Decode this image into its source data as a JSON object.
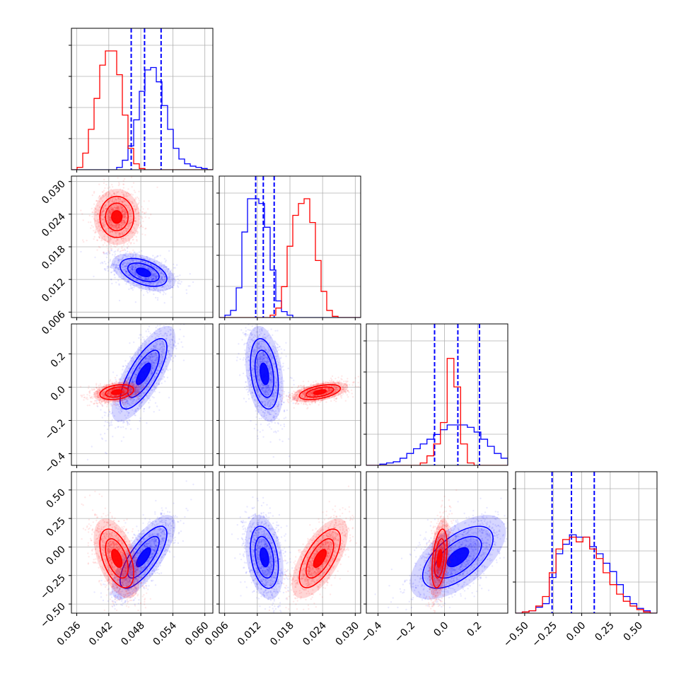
{
  "chart_data": {
    "type": "corner",
    "parameters": [
      {
        "range": [
          0.035,
          0.0615
        ],
        "ticks": [
          "0.036",
          "0.042",
          "0.048",
          "0.054",
          "0.060"
        ],
        "tick_values": [
          0.036,
          0.042,
          0.048,
          0.054,
          0.06
        ]
      },
      {
        "range": [
          0.005,
          0.031
        ],
        "ticks": [
          "0.006",
          "0.012",
          "0.018",
          "0.024",
          "0.030"
        ],
        "tick_values": [
          0.006,
          0.012,
          0.018,
          0.024,
          0.03
        ]
      },
      {
        "range": [
          -0.47,
          0.38
        ],
        "ticks": [
          "−0.4",
          "−0.2",
          "0.0",
          "0.2"
        ],
        "tick_values": [
          -0.4,
          -0.2,
          0.0,
          0.2
        ]
      },
      {
        "range": [
          -0.58,
          0.66
        ],
        "ticks": [
          "−0.50",
          "−0.25",
          "0.00",
          "0.25",
          "0.50"
        ],
        "tick_values": [
          -0.5,
          -0.25,
          0.0,
          0.25,
          0.5
        ]
      }
    ],
    "grid": true,
    "series": [
      {
        "color": "#0000ff",
        "means": [
          0.0485,
          0.0133,
          0.08,
          -0.09
        ],
        "sds": [
          0.0029,
          0.0017,
          0.14,
          0.18
        ],
        "correlation": [
          [
            1,
            -0.45,
            0.75,
            0.75
          ],
          [
            -0.45,
            1,
            -0.3,
            -0.3
          ],
          [
            0.75,
            -0.3,
            1,
            0.6
          ],
          [
            0.75,
            -0.3,
            0.6,
            1
          ]
        ],
        "quantiles": [
          [
            0.0462,
            0.0487,
            0.0518
          ],
          [
            0.0117,
            0.0131,
            0.0151
          ],
          [
            -0.06,
            0.08,
            0.21
          ],
          [
            -0.26,
            -0.09,
            0.11
          ]
        ],
        "histograms": [
          {
            "edges": [
              0.035,
              0.0615
            ],
            "counts": [
              0,
              0,
              0,
              0,
              0,
              0,
              0,
              0,
              2,
              8,
              20,
              42,
              66,
              84,
              86,
              74,
              54,
              34,
              18,
              9,
              5,
              3,
              2,
              1,
              0
            ]
          },
          {
            "edges": [
              0.005,
              0.031
            ],
            "counts": [
              0,
              2,
              6,
              25,
              72,
              100,
              100,
              96,
              76,
              40,
              14,
              5,
              2,
              0,
              0,
              0,
              0,
              0,
              0,
              0,
              0,
              0,
              0,
              0,
              0
            ]
          },
          {
            "edges": [
              -0.47,
              0.38
            ],
            "counts": [
              0,
              0,
              1,
              2,
              3,
              6,
              10,
              14,
              18,
              22,
              26,
              30,
              34,
              34,
              34,
              32,
              28,
              22,
              16,
              10,
              6
            ]
          },
          {
            "edges": [
              -0.58,
              0.66
            ],
            "counts": [
              0,
              1,
              2,
              5,
              8,
              30,
              50,
              58,
              66,
              64,
              64,
              56,
              50,
              42,
              35,
              24,
              14,
              8,
              4,
              2,
              0
            ]
          }
        ]
      },
      {
        "color": "#ff0000",
        "means": [
          0.0435,
          0.0235,
          -0.03,
          -0.1
        ],
        "sds": [
          0.0021,
          0.0025,
          0.03,
          0.17
        ],
        "correlation": [
          [
            1,
            0,
            0.3,
            -0.5
          ],
          [
            0,
            1,
            0.5,
            0.65
          ],
          [
            0.3,
            0.5,
            1,
            0.4
          ],
          [
            -0.5,
            0.65,
            0.4,
            1
          ]
        ],
        "quantiles": null,
        "histograms": [
          {
            "edges": [
              0.035,
              0.0615
            ],
            "counts": [
              0,
              2,
              14,
              34,
              60,
              88,
              100,
              100,
              80,
              46,
              18,
              5,
              1,
              0,
              0,
              0,
              0,
              0,
              0,
              0,
              0,
              0,
              0,
              0,
              0
            ]
          },
          {
            "edges": [
              0.005,
              0.031
            ],
            "counts": [
              0,
              0,
              0,
              0,
              0,
              0,
              0,
              0,
              0,
              2,
              8,
              26,
              60,
              86,
              96,
              100,
              80,
              48,
              22,
              6,
              1,
              0,
              0,
              0,
              0
            ]
          },
          {
            "edges": [
              -0.47,
              0.38
            ],
            "counts": [
              0,
              0,
              0,
              0,
              0,
              0,
              0,
              0,
              2,
              8,
              18,
              36,
              90,
              66,
              18,
              2,
              0,
              0,
              0,
              0,
              0
            ]
          },
          {
            "edges": [
              -0.58,
              0.66
            ],
            "counts": [
              0,
              1,
              2,
              6,
              14,
              34,
              54,
              62,
              64,
              60,
              64,
              54,
              46,
              34,
              24,
              16,
              10,
              6,
              3,
              1,
              0
            ]
          }
        ]
      }
    ]
  }
}
